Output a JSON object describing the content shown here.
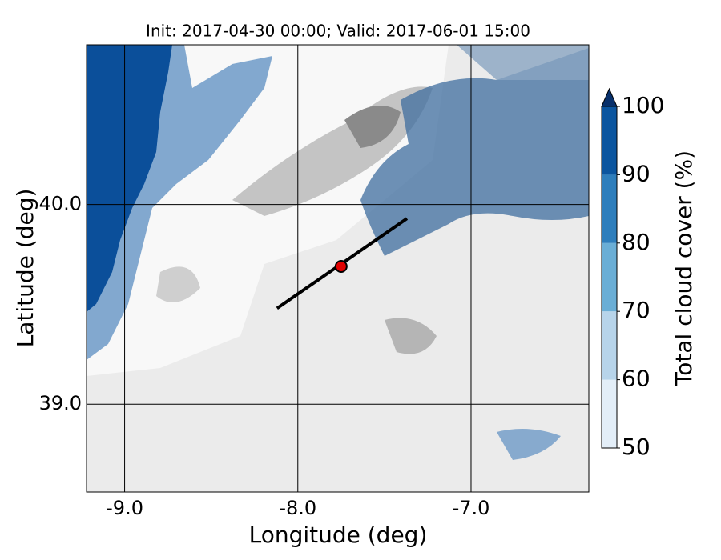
{
  "chart_data": {
    "type": "contour-map",
    "title": "Init: 2017-04-30 00:00; Valid: 2017-06-01 15:00",
    "xlabel": "Longitude (deg)",
    "ylabel": "Latitude (deg)",
    "xlim": [
      -9.22,
      -6.32
    ],
    "ylim": [
      38.56,
      40.8
    ],
    "xticks": [
      {
        "value": -9,
        "label": "-9.0"
      },
      {
        "value": -8,
        "label": "-8.0"
      },
      {
        "value": -7,
        "label": "-7.0"
      }
    ],
    "yticks": [
      {
        "value": 39,
        "label": "39.0"
      },
      {
        "value": 40,
        "label": "40.0"
      }
    ],
    "grid": true,
    "transect": {
      "lon": [
        -8.12,
        -7.37
      ],
      "lat": [
        39.48,
        39.93
      ],
      "color": "#000000"
    },
    "point": {
      "lon": -7.75,
      "lat": 39.69,
      "color": "#e00000"
    },
    "colorbar": {
      "label": "Total cloud cover (%)",
      "lim": [
        50,
        100
      ],
      "ticks": [
        50,
        60,
        70,
        80,
        90,
        100
      ],
      "colors": [
        "#e3eef8",
        "#b7d4ea",
        "#6aaed6",
        "#2e7ebc",
        "#0b559f"
      ],
      "extend_color": "#08306b"
    }
  }
}
